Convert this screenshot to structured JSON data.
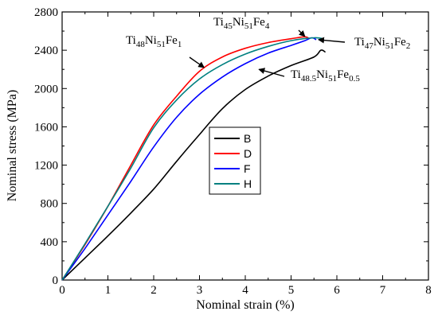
{
  "chart_data": {
    "type": "line",
    "xlabel": "Nominal strain (%)",
    "ylabel": "Nominal stress (MPa)",
    "xlim": [
      0,
      8
    ],
    "ylim": [
      0,
      2800
    ],
    "xticks": [
      0,
      1,
      2,
      3,
      4,
      5,
      6,
      7,
      8
    ],
    "yticks": [
      0,
      400,
      800,
      1200,
      1600,
      2000,
      2400,
      2800
    ],
    "grid": false,
    "legend_position": "center",
    "series": [
      {
        "name": "B",
        "color": "#000000",
        "x": [
          0,
          0.5,
          1.0,
          1.5,
          2.0,
          2.5,
          3.0,
          3.5,
          4.0,
          4.5,
          5.0,
          5.5,
          5.65,
          5.75
        ],
        "y": [
          0,
          230,
          460,
          700,
          950,
          1240,
          1520,
          1790,
          1990,
          2130,
          2240,
          2330,
          2400,
          2380
        ]
      },
      {
        "name": "D",
        "color": "#ff0000",
        "x": [
          0,
          0.5,
          1.0,
          1.5,
          2.0,
          2.5,
          3.0,
          3.5,
          4.0,
          4.5,
          5.0,
          5.3,
          5.4
        ],
        "y": [
          0,
          370,
          770,
          1200,
          1620,
          1920,
          2180,
          2330,
          2420,
          2480,
          2520,
          2540,
          2520
        ]
      },
      {
        "name": "F",
        "color": "#0000ff",
        "x": [
          0,
          0.5,
          1.0,
          1.5,
          2.0,
          2.5,
          3.0,
          3.5,
          4.0,
          4.5,
          5.0,
          5.3,
          5.45,
          5.55
        ],
        "y": [
          0,
          330,
          680,
          1030,
          1390,
          1700,
          1940,
          2120,
          2260,
          2370,
          2450,
          2500,
          2530,
          2510
        ]
      },
      {
        "name": "H",
        "color": "#008080",
        "x": [
          0,
          0.5,
          1.0,
          1.5,
          2.0,
          2.5,
          3.0,
          3.5,
          4.0,
          4.5,
          5.0,
          5.5,
          5.7
        ],
        "y": [
          0,
          380,
          770,
          1170,
          1590,
          1880,
          2100,
          2250,
          2360,
          2440,
          2500,
          2530,
          2520
        ]
      }
    ],
    "annotations": [
      {
        "base": [
          "Ti",
          "Ni",
          "Fe"
        ],
        "subs": [
          "48",
          "51",
          "1"
        ],
        "arrow_to": [
          3.1,
          2220
        ]
      },
      {
        "base": [
          "Ti",
          "Ni",
          "Fe"
        ],
        "subs": [
          "45",
          "51",
          "4"
        ],
        "arrow_to": [
          5.3,
          2545
        ]
      },
      {
        "base": [
          "Ti",
          "Ni",
          "Fe"
        ],
        "subs": [
          "47",
          "51",
          "2"
        ],
        "arrow_to": [
          5.6,
          2510
        ]
      },
      {
        "base": [
          "Ti",
          "Ni",
          "Fe"
        ],
        "subs": [
          "48.5",
          "51",
          "0.5"
        ],
        "arrow_to": [
          4.3,
          2200
        ]
      }
    ]
  }
}
